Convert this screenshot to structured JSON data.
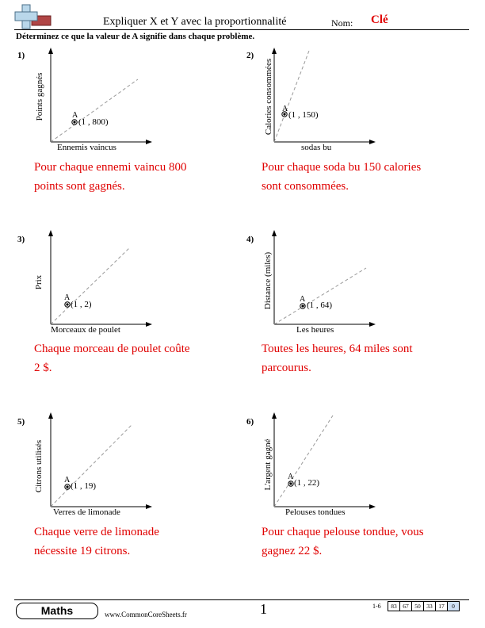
{
  "header": {
    "title": "Expliquer X et Y avec la proportionnalité",
    "name_label": "Nom:",
    "name_value": "Clé",
    "instructions": "Déterminez ce que la valeur de A signifie dans chaque problème."
  },
  "problems": [
    {
      "number": "1)",
      "ylabel": "Points gagnés",
      "xlabel": "Ennemis vaincus",
      "point_label": "A",
      "coord": "(1 , 800)",
      "answer_line1": "Pour chaque ennemi vaincu 800",
      "answer_line2": "points sont gagnés.",
      "slope_ratio": 0.6
    },
    {
      "number": "2)",
      "ylabel": "Calories consommées",
      "xlabel": "sodas bu",
      "point_label": "A",
      "coord": "(1 , 150)",
      "answer_line1": "Pour chaque soda bu 150 calories",
      "answer_line2": "sont consommées.",
      "slope_ratio": 2.6
    },
    {
      "number": "3)",
      "ylabel": "Prix",
      "xlabel": "Morceaux de poulet",
      "point_label": "A",
      "coord": "(1 , 2)",
      "answer_line1": "Chaque morceau de poulet coûte",
      "answer_line2": "2 $.",
      "slope_ratio": 0.85
    },
    {
      "number": "4)",
      "ylabel": "Distance (miles)",
      "xlabel": "Les heures",
      "point_label": "A",
      "coord": "(1 , 64)",
      "answer_line1": "Toutes les heures, 64 miles sont",
      "answer_line2": "parcourus.",
      "slope_ratio": 0.6
    },
    {
      "number": "5)",
      "ylabel": "Citrons utilisés",
      "xlabel": "Verres de limonade",
      "point_label": "A",
      "coord": "(1 , 19)",
      "answer_line1": "Chaque verre de limonade",
      "answer_line2": "nécessite 19 citrons.",
      "slope_ratio": 1.0
    },
    {
      "number": "6)",
      "ylabel": "L'argent gagné",
      "xlabel": "Pelouses tondues",
      "point_label": "A",
      "coord": "(1 , 22)",
      "answer_line1": "Pour chaque pelouse tondue, vous",
      "answer_line2": "gagnez 22 $.",
      "slope_ratio": 1.55
    }
  ],
  "footer": {
    "subject": "Maths",
    "website": "www.CommonCoreSheets.fr",
    "page": "1",
    "range": "1-6",
    "scores": [
      "83",
      "67",
      "50",
      "33",
      "17",
      "0"
    ]
  }
}
